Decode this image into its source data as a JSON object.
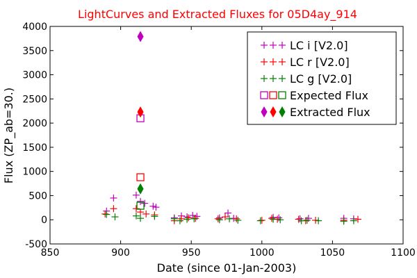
{
  "chart_data": {
    "type": "scatter",
    "title": "LightCurves and Extracted Fluxes for 05D4ay_914",
    "xlabel": "Date (since 01-Jan-2003)",
    "ylabel": "Flux (ZP_ab=30.)",
    "xlim": [
      850,
      1100
    ],
    "ylim": [
      -500,
      4000
    ],
    "xticks": [
      "850",
      "900",
      "950",
      "1000",
      "1050",
      "1100"
    ],
    "yticks": [
      "-500",
      "0",
      "500",
      "1000",
      "1500",
      "2000",
      "2500",
      "3000",
      "3500",
      "4000"
    ],
    "legend_position": "top-right",
    "series": [
      {
        "name": "LC i [V2.0]",
        "marker": "plus",
        "color": "#bf00bf",
        "points": [
          [
            890,
            180
          ],
          [
            895,
            450
          ],
          [
            911,
            510
          ],
          [
            914,
            380
          ],
          [
            917,
            340
          ],
          [
            923,
            280
          ],
          [
            925,
            260
          ],
          [
            938,
            40
          ],
          [
            943,
            80
          ],
          [
            947,
            60
          ],
          [
            951,
            90
          ],
          [
            954,
            70
          ],
          [
            970,
            40
          ],
          [
            976,
            140
          ],
          [
            980,
            30
          ],
          [
            1008,
            50
          ],
          [
            1012,
            40
          ],
          [
            1027,
            20
          ],
          [
            1033,
            30
          ],
          [
            1058,
            30
          ],
          [
            1065,
            20
          ]
        ]
      },
      {
        "name": "LC r [V2.0]",
        "marker": "plus",
        "color": "#ff0000",
        "points": [
          [
            889,
            120
          ],
          [
            895,
            230
          ],
          [
            911,
            230
          ],
          [
            914,
            160
          ],
          [
            918,
            120
          ],
          [
            924,
            100
          ],
          [
            938,
            -20
          ],
          [
            943,
            20
          ],
          [
            948,
            40
          ],
          [
            953,
            30
          ],
          [
            969,
            20
          ],
          [
            974,
            60
          ],
          [
            982,
            20
          ],
          [
            1000,
            -10
          ],
          [
            1007,
            30
          ],
          [
            1011,
            10
          ],
          [
            1026,
            10
          ],
          [
            1031,
            -20
          ],
          [
            1038,
            -10
          ],
          [
            1058,
            -10
          ],
          [
            1068,
            10
          ]
        ]
      },
      {
        "name": "LC g [V2.0]",
        "marker": "plus",
        "color": "#008000",
        "points": [
          [
            890,
            110
          ],
          [
            896,
            60
          ],
          [
            911,
            80
          ],
          [
            914,
            30
          ],
          [
            924,
            70
          ],
          [
            938,
            20
          ],
          [
            942,
            -20
          ],
          [
            947,
            10
          ],
          [
            952,
            20
          ],
          [
            970,
            0
          ],
          [
            977,
            20
          ],
          [
            983,
            -10
          ],
          [
            999,
            -20
          ],
          [
            1008,
            10
          ],
          [
            1013,
            0
          ],
          [
            1028,
            -20
          ],
          [
            1032,
            -10
          ],
          [
            1040,
            -20
          ],
          [
            1058,
            -30
          ],
          [
            1065,
            -20
          ]
        ]
      },
      {
        "name": "Expected Flux",
        "marker": "square",
        "color": "multi",
        "points": [
          {
            "x": 914,
            "y": 2100,
            "color": "#bf00bf"
          },
          {
            "x": 914,
            "y": 880,
            "color": "#ff0000"
          },
          {
            "x": 914,
            "y": 290,
            "color": "#008000"
          }
        ]
      },
      {
        "name": "Extracted Flux",
        "marker": "diamond",
        "color": "multi",
        "points": [
          {
            "x": 914,
            "y": 3790,
            "color": "#bf00bf"
          },
          {
            "x": 914,
            "y": 2230,
            "color": "#ff0000"
          },
          {
            "x": 914,
            "y": 640,
            "color": "#008000"
          }
        ]
      }
    ]
  }
}
